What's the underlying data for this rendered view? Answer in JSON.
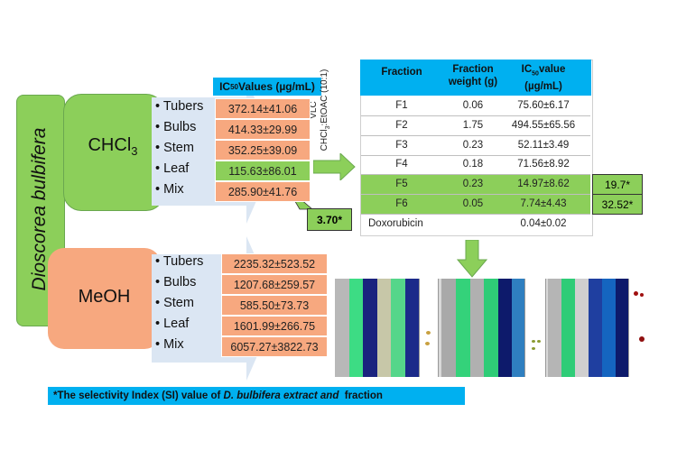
{
  "title_vertical": "Dioscorea bulbifera",
  "chcl3_box": {
    "label_main": "CHCl",
    "label_sub": "3"
  },
  "meoh_box": {
    "label": "MeOH"
  },
  "ic50_header": {
    "prefix": "IC",
    "sub": "50",
    "suffix": "Values (µg/mL)"
  },
  "chcl3_rows": [
    {
      "part": "Tubers",
      "value": "372.14±41.06"
    },
    {
      "part": "Bulbs",
      "value": "414.33±29.99"
    },
    {
      "part": "Stem",
      "value": "352.25±39.09"
    },
    {
      "part": "Leaf",
      "value": "115.63±86.01"
    },
    {
      "part": "Mix",
      "value": "285.90±41.76"
    }
  ],
  "meoh_rows": [
    {
      "part": "Tubers",
      "value": "2235.32±523.52"
    },
    {
      "part": "Bulbs",
      "value": "1207.68±259.57"
    },
    {
      "part": "Stem",
      "value": "585.50±73.73"
    },
    {
      "part": "Leaf",
      "value": "1601.99±266.75"
    },
    {
      "part": "Mix",
      "value": "6057.27±3822.73"
    }
  ],
  "leaf_si": "3.70*",
  "vlc_label": {
    "line1": "VLC",
    "line2_a": "CHCl",
    "line2_sub": "3",
    "line2_b": ":EtOAC (10:1)"
  },
  "fraction_table": {
    "headers": {
      "fraction": "Fraction",
      "weight": "Fraction weight (g)",
      "ic50_prefix": "IC",
      "ic50_sub": "50",
      "ic50_suffix": "value (µg/mL)"
    },
    "rows": [
      {
        "fraction": "F1",
        "weight": "0.06",
        "ic50": "75.60±6.17"
      },
      {
        "fraction": "F2",
        "weight": "1.75",
        "ic50": "494.55±65.56"
      },
      {
        "fraction": "F3",
        "weight": "0.23",
        "ic50": "52.11±3.49"
      },
      {
        "fraction": "F4",
        "weight": "0.18",
        "ic50": "71.56±8.92"
      },
      {
        "fraction": "F5",
        "weight": "0.23",
        "ic50": "14.97±8.62"
      },
      {
        "fraction": "F6",
        "weight": "0.05",
        "ic50": "7.74±4.43"
      },
      {
        "fraction": "Doxorubicin",
        "weight": "",
        "ic50": "0.04±0.02"
      }
    ],
    "si_values": [
      "19.7*",
      "32.52*"
    ]
  },
  "footnote": {
    "a": "*The selectivity Index (SI) value of ",
    "italic": "D. bulbifera extract and",
    "b": "  fraction"
  },
  "colors": {
    "green": "#8ccf5a",
    "salmon": "#f7a87f",
    "blue_bar": "#00b0f0",
    "arrow_lightblue": "#dbe6f3"
  }
}
